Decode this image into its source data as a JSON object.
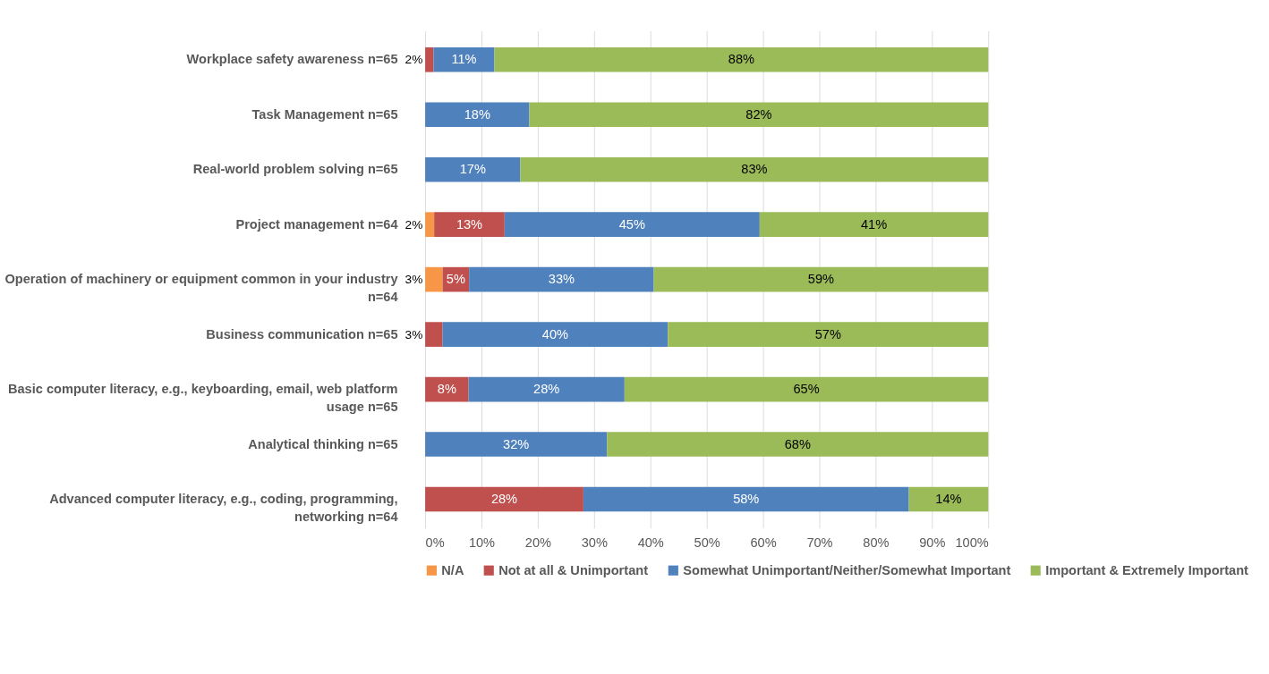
{
  "chart_data": {
    "type": "bar",
    "orientation": "horizontal",
    "stacked": true,
    "categories": [
      "Workplace safety awareness n=65",
      "Task Management n=65",
      "Real-world problem solving n=65",
      "Project management n=64",
      "Operation of machinery or equipment common in your industry n=64",
      "Business communication n=65",
      "Basic computer literacy, e.g., keyboarding, email, web platform usage n=65",
      "Analytical thinking n=65",
      "Advanced computer literacy, e.g., coding, programming, networking n=64"
    ],
    "series": [
      {
        "name": "N/A",
        "color": "#f79646",
        "values": [
          null,
          null,
          null,
          1.6,
          3.1,
          null,
          null,
          null,
          null
        ],
        "value_labels": [
          null,
          null,
          null,
          "2%",
          "3%",
          null,
          null,
          null,
          null
        ]
      },
      {
        "name": "Not at all & Unimportant",
        "color": "#c0504d",
        "values": [
          1.5,
          null,
          null,
          12.5,
          4.7,
          3.1,
          7.7,
          null,
          28.1
        ],
        "value_labels": [
          "2%",
          null,
          null,
          "13%",
          "5%",
          "3%",
          "8%",
          null,
          "28%"
        ]
      },
      {
        "name": "Somewhat Unimportant/Neither/Somewhat Important",
        "color": "#4f81bd",
        "values": [
          10.8,
          18.5,
          16.9,
          45.3,
          32.8,
          40.0,
          27.7,
          32.3,
          57.8
        ],
        "value_labels": [
          "11%",
          "18%",
          "17%",
          "45%",
          "33%",
          "40%",
          "28%",
          "32%",
          "58%"
        ]
      },
      {
        "name": "Important & Extremely Important",
        "color": "#9bbb59",
        "values": [
          87.7,
          81.5,
          83.1,
          40.6,
          59.4,
          56.9,
          64.6,
          67.7,
          14.1
        ],
        "value_labels": [
          "88%",
          "82%",
          "83%",
          "41%",
          "59%",
          "57%",
          "65%",
          "68%",
          "14%"
        ]
      }
    ],
    "xlim": [
      0,
      100
    ],
    "xticks": [
      {
        "value": 0,
        "label": "0%"
      },
      {
        "value": 10,
        "label": "10%"
      },
      {
        "value": 20,
        "label": "20%"
      },
      {
        "value": 30,
        "label": "30%"
      },
      {
        "value": 40,
        "label": "40%"
      },
      {
        "value": 50,
        "label": "50%"
      },
      {
        "value": 60,
        "label": "60%"
      },
      {
        "value": 70,
        "label": "70%"
      },
      {
        "value": 80,
        "label": "80%"
      },
      {
        "value": 90,
        "label": "90%"
      },
      {
        "value": 100,
        "label": "100%"
      }
    ],
    "grid": "x",
    "legend": "bottom"
  }
}
